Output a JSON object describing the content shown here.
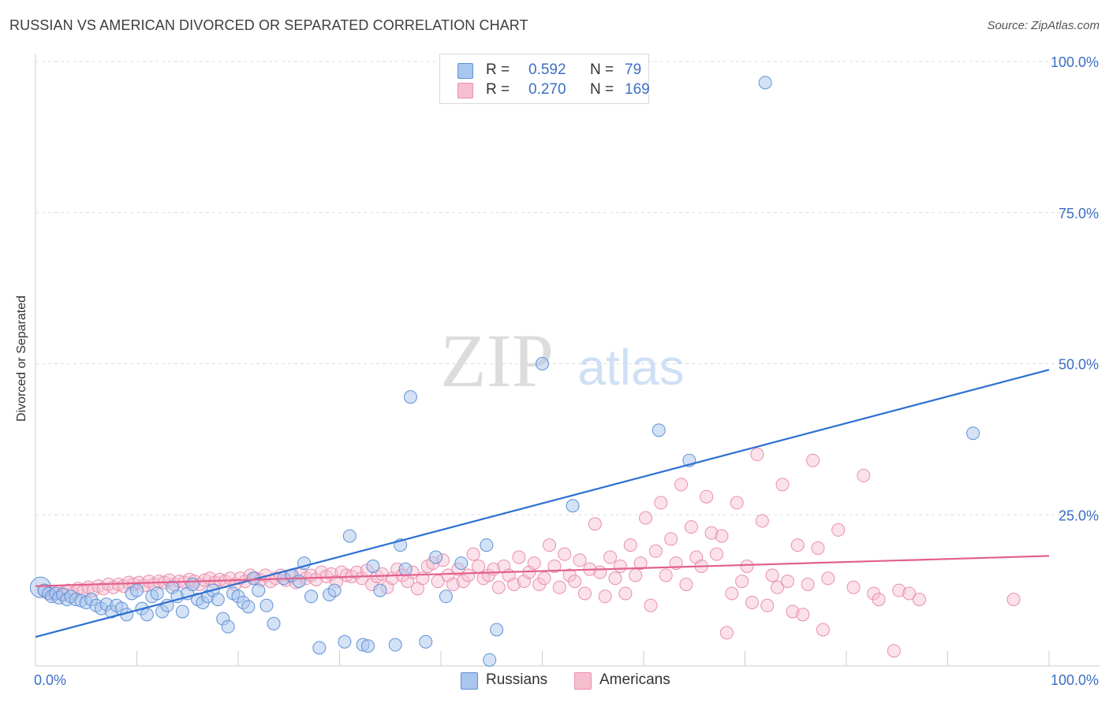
{
  "title": "RUSSIAN VS AMERICAN DIVORCED OR SEPARATED CORRELATION CHART",
  "source": "Source: ZipAtlas.com",
  "watermark": {
    "zip": "ZIP",
    "atlas": "atlas"
  },
  "legend": {
    "row1": {
      "r_label": "R =",
      "r_value": "0.592",
      "n_label": "N =",
      "n_value": "79"
    },
    "row2": {
      "r_label": "R =",
      "r_value": "0.270",
      "n_label": "N =",
      "n_value": "169"
    }
  },
  "bottom_legend": {
    "series1": "Russians",
    "series2": "Americans"
  },
  "colors": {
    "russians_fill": "#a9c6ee",
    "russians_stroke": "#5f92d6",
    "russians_line": "#2b6fd0",
    "americans_fill": "#f6bfd0",
    "americans_stroke": "#e98fac",
    "americans_line": "#e2608c",
    "tick_label": "#3b6fc4",
    "grid": "#dddddd"
  },
  "chart_data": {
    "type": "scatter",
    "title": "RUSSIAN VS AMERICAN DIVORCED OR SEPARATED CORRELATION CHART",
    "xlabel": "",
    "ylabel": "Divorced or Separated",
    "xlim": [
      0,
      100
    ],
    "ylim": [
      0,
      100
    ],
    "x_tick_labels": [
      "0.0%",
      "100.0%"
    ],
    "y_ticks": [
      25,
      50,
      75,
      100
    ],
    "y_tick_labels": [
      "25.0%",
      "50.0%",
      "75.0%",
      "100.0%"
    ],
    "grid": true,
    "legend_position": "top-center",
    "series": [
      {
        "name": "Russians",
        "r": 0.592,
        "n": 79,
        "trend": {
          "x": [
            0,
            100
          ],
          "y": [
            4.8,
            49.0
          ]
        },
        "points": [
          [
            0.5,
            13.0
          ],
          [
            0.9,
            12.5
          ],
          [
            1.3,
            12.0
          ],
          [
            1.6,
            11.5
          ],
          [
            2.0,
            12.0
          ],
          [
            2.3,
            11.3
          ],
          [
            2.7,
            11.8
          ],
          [
            3.1,
            11.0
          ],
          [
            3.5,
            11.5
          ],
          [
            4.0,
            11.0
          ],
          [
            4.5,
            10.8
          ],
          [
            5.0,
            10.5
          ],
          [
            5.5,
            11.0
          ],
          [
            6.0,
            10.0
          ],
          [
            6.5,
            9.5
          ],
          [
            7.0,
            10.2
          ],
          [
            7.5,
            9.0
          ],
          [
            8.0,
            10.0
          ],
          [
            8.5,
            9.5
          ],
          [
            9.0,
            8.5
          ],
          [
            9.5,
            12.0
          ],
          [
            10.0,
            12.5
          ],
          [
            10.5,
            9.5
          ],
          [
            11.0,
            8.5
          ],
          [
            11.5,
            11.5
          ],
          [
            12.0,
            12.0
          ],
          [
            12.5,
            9.0
          ],
          [
            13.0,
            10.0
          ],
          [
            13.5,
            13.0
          ],
          [
            14.0,
            11.5
          ],
          [
            14.5,
            9.0
          ],
          [
            15.0,
            12.0
          ],
          [
            15.5,
            13.5
          ],
          [
            16.0,
            11.0
          ],
          [
            16.5,
            10.5
          ],
          [
            17.0,
            11.5
          ],
          [
            17.5,
            12.5
          ],
          [
            18.0,
            11.0
          ],
          [
            18.5,
            7.8
          ],
          [
            19.0,
            6.5
          ],
          [
            19.5,
            12.0
          ],
          [
            20.0,
            11.5
          ],
          [
            20.5,
            10.5
          ],
          [
            21.0,
            9.8
          ],
          [
            21.5,
            14.5
          ],
          [
            22.0,
            12.5
          ],
          [
            22.8,
            10.0
          ],
          [
            23.5,
            7.0
          ],
          [
            24.5,
            14.5
          ],
          [
            25.3,
            15.0
          ],
          [
            26.0,
            14.0
          ],
          [
            26.5,
            17.0
          ],
          [
            27.2,
            11.5
          ],
          [
            28.0,
            3.0
          ],
          [
            29.0,
            11.8
          ],
          [
            29.5,
            12.5
          ],
          [
            30.5,
            4.0
          ],
          [
            31.0,
            21.5
          ],
          [
            32.3,
            3.5
          ],
          [
            32.8,
            3.3
          ],
          [
            33.3,
            16.5
          ],
          [
            34.0,
            12.5
          ],
          [
            35.5,
            3.5
          ],
          [
            36.0,
            20.0
          ],
          [
            36.5,
            16.0
          ],
          [
            37.0,
            44.5
          ],
          [
            38.5,
            4.0
          ],
          [
            39.5,
            18.0
          ],
          [
            40.5,
            11.5
          ],
          [
            42.0,
            17.0
          ],
          [
            44.5,
            20.0
          ],
          [
            44.8,
            1.0
          ],
          [
            45.5,
            6.0
          ],
          [
            50.0,
            50.0
          ],
          [
            53.0,
            26.5
          ],
          [
            61.5,
            39.0
          ],
          [
            64.5,
            34.0
          ],
          [
            72.0,
            96.5
          ],
          [
            92.5,
            38.5
          ]
        ]
      },
      {
        "name": "Americans",
        "r": 0.27,
        "n": 169,
        "trend": {
          "x": [
            0,
            100
          ],
          "y": [
            13.2,
            18.2
          ]
        },
        "points": [
          [
            0.8,
            12.5
          ],
          [
            1.3,
            12.0
          ],
          [
            1.8,
            11.8
          ],
          [
            2.2,
            12.3
          ],
          [
            2.7,
            12.0
          ],
          [
            3.2,
            12.5
          ],
          [
            3.7,
            12.0
          ],
          [
            4.2,
            12.8
          ],
          [
            4.7,
            12.3
          ],
          [
            5.2,
            13.0
          ],
          [
            5.7,
            12.5
          ],
          [
            6.2,
            13.2
          ],
          [
            6.7,
            12.8
          ],
          [
            7.2,
            13.5
          ],
          [
            7.7,
            13.0
          ],
          [
            8.2,
            13.5
          ],
          [
            8.7,
            13.2
          ],
          [
            9.2,
            13.8
          ],
          [
            9.7,
            13.5
          ],
          [
            10.2,
            13.8
          ],
          [
            10.7,
            13.3
          ],
          [
            11.2,
            14.0
          ],
          [
            11.7,
            13.5
          ],
          [
            12.2,
            14.0
          ],
          [
            12.7,
            13.8
          ],
          [
            13.2,
            14.2
          ],
          [
            13.7,
            13.5
          ],
          [
            14.2,
            14.0
          ],
          [
            14.7,
            13.8
          ],
          [
            15.2,
            14.3
          ],
          [
            15.7,
            14.0
          ],
          [
            16.2,
            13.5
          ],
          [
            16.7,
            14.2
          ],
          [
            17.2,
            14.5
          ],
          [
            17.7,
            13.8
          ],
          [
            18.2,
            14.3
          ],
          [
            18.7,
            14.0
          ],
          [
            19.2,
            14.5
          ],
          [
            19.7,
            13.5
          ],
          [
            20.2,
            14.5
          ],
          [
            20.7,
            14.0
          ],
          [
            21.2,
            15.0
          ],
          [
            21.7,
            14.5
          ],
          [
            22.2,
            14.2
          ],
          [
            22.7,
            15.0
          ],
          [
            23.2,
            14.0
          ],
          [
            23.7,
            14.5
          ],
          [
            24.2,
            15.0
          ],
          [
            24.7,
            14.2
          ],
          [
            25.2,
            14.8
          ],
          [
            25.7,
            13.8
          ],
          [
            26.2,
            15.2
          ],
          [
            26.7,
            14.5
          ],
          [
            27.2,
            15.0
          ],
          [
            27.7,
            14.3
          ],
          [
            28.2,
            15.5
          ],
          [
            28.7,
            14.8
          ],
          [
            29.2,
            15.2
          ],
          [
            29.7,
            14.0
          ],
          [
            30.2,
            15.5
          ],
          [
            30.7,
            15.0
          ],
          [
            31.2,
            14.8
          ],
          [
            31.7,
            15.5
          ],
          [
            32.2,
            14.5
          ],
          [
            32.7,
            15.8
          ],
          [
            33.2,
            13.5
          ],
          [
            33.7,
            14.8
          ],
          [
            34.2,
            15.2
          ],
          [
            34.7,
            13.0
          ],
          [
            35.2,
            14.5
          ],
          [
            35.7,
            16.0
          ],
          [
            36.2,
            15.0
          ],
          [
            36.7,
            14.0
          ],
          [
            37.2,
            15.5
          ],
          [
            37.7,
            12.8
          ],
          [
            38.2,
            14.5
          ],
          [
            38.7,
            16.5
          ],
          [
            39.2,
            17.0
          ],
          [
            39.7,
            14.0
          ],
          [
            40.2,
            17.5
          ],
          [
            40.7,
            15.0
          ],
          [
            41.2,
            13.5
          ],
          [
            41.7,
            16.0
          ],
          [
            42.2,
            14.0
          ],
          [
            42.7,
            15.0
          ],
          [
            43.2,
            18.5
          ],
          [
            43.7,
            16.5
          ],
          [
            44.2,
            14.5
          ],
          [
            44.7,
            15.0
          ],
          [
            45.2,
            16.0
          ],
          [
            45.7,
            13.0
          ],
          [
            46.2,
            16.5
          ],
          [
            46.7,
            15.0
          ],
          [
            47.2,
            13.5
          ],
          [
            47.7,
            18.0
          ],
          [
            48.2,
            14.0
          ],
          [
            48.7,
            15.5
          ],
          [
            49.2,
            17.0
          ],
          [
            49.7,
            13.5
          ],
          [
            50.2,
            14.5
          ],
          [
            50.7,
            20.0
          ],
          [
            51.2,
            16.5
          ],
          [
            51.7,
            13.0
          ],
          [
            52.2,
            18.5
          ],
          [
            52.7,
            15.0
          ],
          [
            53.2,
            14.0
          ],
          [
            53.7,
            17.5
          ],
          [
            54.2,
            12.0
          ],
          [
            54.7,
            16.0
          ],
          [
            55.2,
            23.5
          ],
          [
            55.7,
            15.5
          ],
          [
            56.2,
            11.5
          ],
          [
            56.7,
            18.0
          ],
          [
            57.2,
            14.5
          ],
          [
            57.7,
            16.5
          ],
          [
            58.2,
            12.0
          ],
          [
            58.7,
            20.0
          ],
          [
            59.2,
            15.0
          ],
          [
            59.7,
            17.0
          ],
          [
            60.2,
            24.5
          ],
          [
            60.7,
            10.0
          ],
          [
            61.2,
            19.0
          ],
          [
            61.7,
            27.0
          ],
          [
            62.2,
            15.0
          ],
          [
            62.7,
            21.0
          ],
          [
            63.2,
            17.0
          ],
          [
            63.7,
            30.0
          ],
          [
            64.2,
            13.5
          ],
          [
            64.7,
            23.0
          ],
          [
            65.2,
            18.0
          ],
          [
            65.7,
            16.5
          ],
          [
            66.2,
            28.0
          ],
          [
            66.7,
            22.0
          ],
          [
            67.2,
            18.5
          ],
          [
            67.7,
            21.5
          ],
          [
            68.2,
            5.5
          ],
          [
            68.7,
            12.0
          ],
          [
            69.2,
            27.0
          ],
          [
            69.7,
            14.0
          ],
          [
            70.2,
            16.5
          ],
          [
            70.7,
            10.5
          ],
          [
            71.2,
            35.0
          ],
          [
            71.7,
            24.0
          ],
          [
            72.2,
            10.0
          ],
          [
            72.7,
            15.0
          ],
          [
            73.2,
            13.0
          ],
          [
            73.7,
            30.0
          ],
          [
            74.2,
            14.0
          ],
          [
            74.7,
            9.0
          ],
          [
            75.2,
            20.0
          ],
          [
            75.7,
            8.5
          ],
          [
            76.2,
            13.5
          ],
          [
            76.7,
            34.0
          ],
          [
            77.2,
            19.5
          ],
          [
            77.7,
            6.0
          ],
          [
            78.2,
            14.5
          ],
          [
            79.2,
            22.5
          ],
          [
            80.7,
            13.0
          ],
          [
            81.7,
            31.5
          ],
          [
            82.7,
            12.0
          ],
          [
            83.2,
            11.0
          ],
          [
            84.7,
            2.5
          ],
          [
            85.2,
            12.5
          ],
          [
            86.2,
            12.0
          ],
          [
            87.2,
            11.0
          ],
          [
            96.5,
            11.0
          ]
        ]
      }
    ]
  }
}
